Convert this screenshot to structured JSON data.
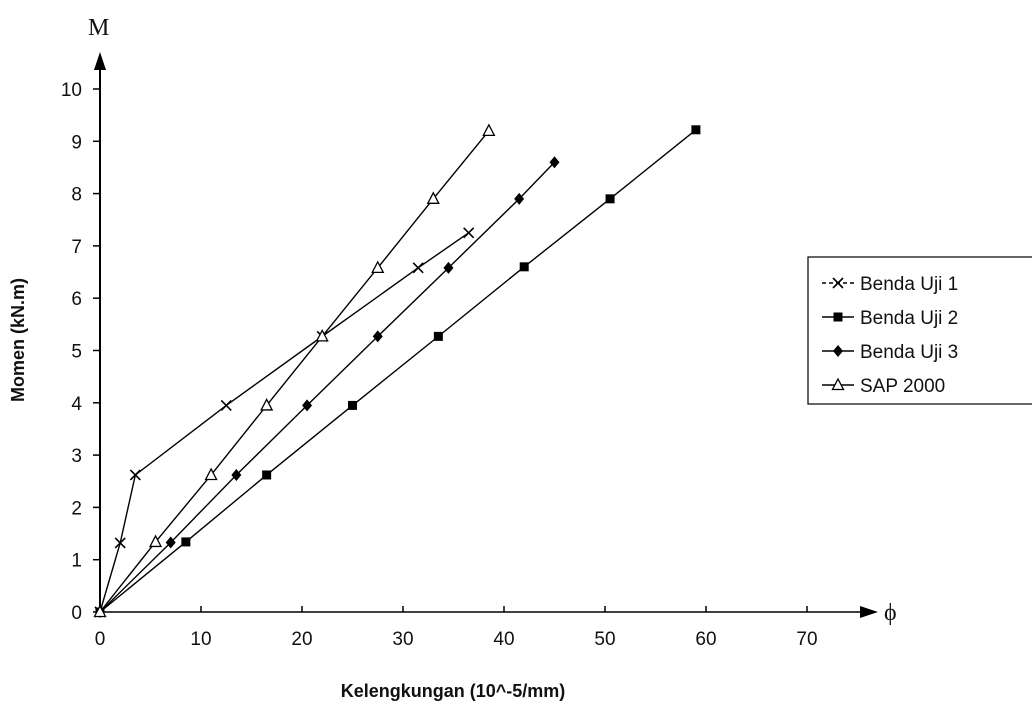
{
  "chart_data": {
    "type": "line",
    "xlabel": "Kelengkungan (10^-5/mm)",
    "ylabel": "Momen (kN.m)",
    "y_axis_letter": "M",
    "x_axis_letter": "ϕ",
    "xlim": [
      0,
      70
    ],
    "ylim": [
      0,
      10
    ],
    "x_ticks": [
      "0",
      "10",
      "20",
      "30",
      "40",
      "50",
      "60",
      "70"
    ],
    "y_ticks": [
      "0",
      "1",
      "2",
      "3",
      "4",
      "5",
      "6",
      "7",
      "8",
      "9",
      "10"
    ],
    "grid": false,
    "legend_position": "right",
    "series": [
      {
        "name": "Benda Uji 1",
        "marker": "x",
        "color": "#000000",
        "x": [
          0,
          2,
          3.5,
          12.5,
          22,
          31.5,
          36.5
        ],
        "y": [
          0,
          1.32,
          2.62,
          3.95,
          5.27,
          6.58,
          7.25
        ]
      },
      {
        "name": "Benda Uji 2",
        "marker": "square",
        "color": "#000000",
        "x": [
          0,
          8.5,
          16.5,
          25,
          33.5,
          42,
          50.5,
          59
        ],
        "y": [
          0,
          1.34,
          2.62,
          3.95,
          5.27,
          6.6,
          7.9,
          9.22
        ]
      },
      {
        "name": "Benda Uji 3",
        "marker": "diamond",
        "color": "#000000",
        "x": [
          0,
          7,
          13.5,
          20.5,
          27.5,
          34.5,
          41.5,
          45
        ],
        "y": [
          0,
          1.33,
          2.62,
          3.95,
          5.27,
          6.58,
          7.9,
          8.6
        ]
      },
      {
        "name": "SAP 2000",
        "marker": "triangle",
        "color": "#000000",
        "x": [
          0,
          5.5,
          11,
          16.5,
          22,
          27.5,
          33,
          38.5
        ],
        "y": [
          0,
          1.34,
          2.62,
          3.95,
          5.27,
          6.58,
          7.9,
          9.2
        ]
      }
    ]
  }
}
